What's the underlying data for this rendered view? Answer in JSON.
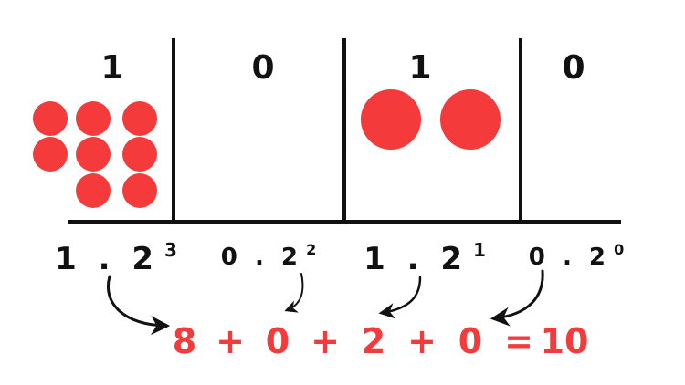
{
  "colors": {
    "ink": "#111111",
    "accent": "#f43a3a"
  },
  "columns": [
    {
      "digit": "1",
      "dots": 8
    },
    {
      "digit": "0",
      "dots": 0
    },
    {
      "digit": "1",
      "dots": 2
    },
    {
      "digit": "0",
      "dots": 0
    }
  ],
  "terms": [
    {
      "coef": "1",
      "dot": ".",
      "base": "2",
      "exp": "3"
    },
    {
      "coef": "0",
      "dot": ".",
      "base": "2",
      "exp": "2"
    },
    {
      "coef": "1",
      "dot": ".",
      "base": "2",
      "exp": "1"
    },
    {
      "coef": "0",
      "dot": ".",
      "base": "2",
      "exp": "0"
    }
  ],
  "sum": {
    "values": [
      "8",
      "0",
      "2",
      "0"
    ],
    "plus": "+",
    "equals": "=",
    "result": "10"
  }
}
